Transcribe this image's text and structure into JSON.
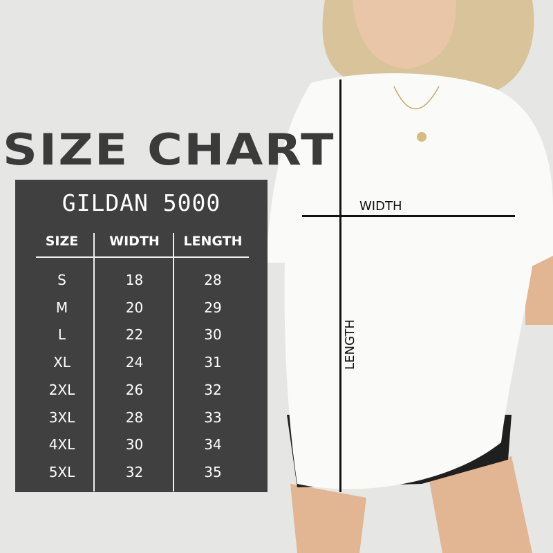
{
  "title": "SIZE CHART",
  "brand": "GILDAN 5000",
  "table": {
    "headers": [
      "SIZE",
      "WIDTH",
      "LENGTH"
    ],
    "rows": [
      [
        "S",
        "18",
        "28"
      ],
      [
        "M",
        "20",
        "29"
      ],
      [
        "L",
        "22",
        "30"
      ],
      [
        "XL",
        "24",
        "31"
      ],
      [
        "2XL",
        "26",
        "32"
      ],
      [
        "3XL",
        "28",
        "33"
      ],
      [
        "4XL",
        "30",
        "34"
      ],
      [
        "5XL",
        "32",
        "35"
      ]
    ]
  },
  "measure_labels": {
    "width": "WIDTH",
    "length": "LENGTH"
  },
  "colors": {
    "background": "#e6e6e4",
    "panel": "#404040",
    "title": "#3b3b3b",
    "shirt": "#fafaf8"
  }
}
